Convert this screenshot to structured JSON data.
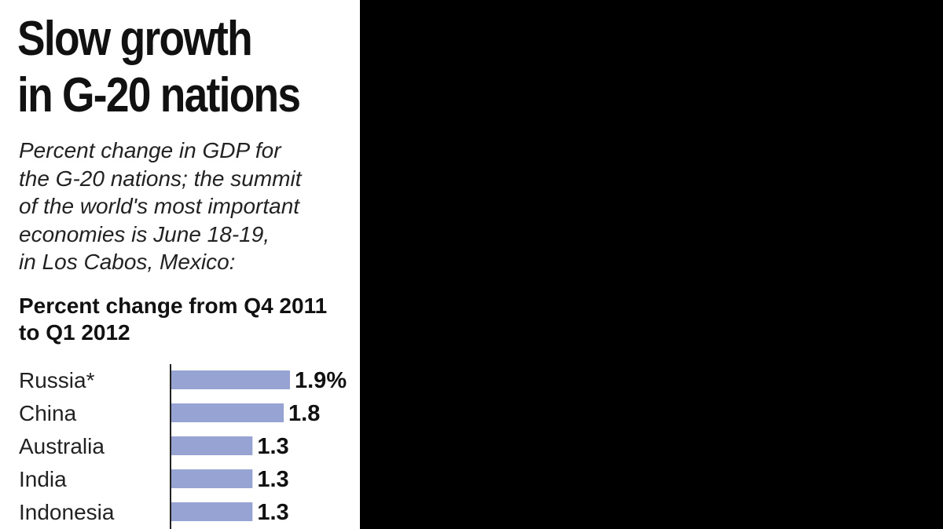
{
  "header": {
    "title_line1": "Slow growth",
    "title_line2": "in G-20 nations",
    "subtitle": "Percent change in GDP for\nthe G-20 nations; the summit\nof the world's most important\neconomies is June 18-19,\nin Los Cabos, Mexico:"
  },
  "colors": {
    "bar": "#97a3d3",
    "axis": "#222222",
    "background_right": "#000000"
  },
  "chart_data": {
    "type": "bar",
    "orientation": "horizontal",
    "title": "Slow growth in G-20 nations",
    "subtitle": "Percent change from Q4 2011 to Q1 2012",
    "categories": [
      "Russia*",
      "China",
      "Australia",
      "India",
      "Indonesia"
    ],
    "values": [
      1.9,
      1.8,
      1.3,
      1.3,
      1.3
    ],
    "value_labels": [
      "1.9%",
      "1.8",
      "1.3",
      "1.3",
      "1.3"
    ],
    "xlabel": "",
    "ylabel": "",
    "xlim": [
      0,
      1.9
    ],
    "grid": false,
    "legend": "none"
  }
}
